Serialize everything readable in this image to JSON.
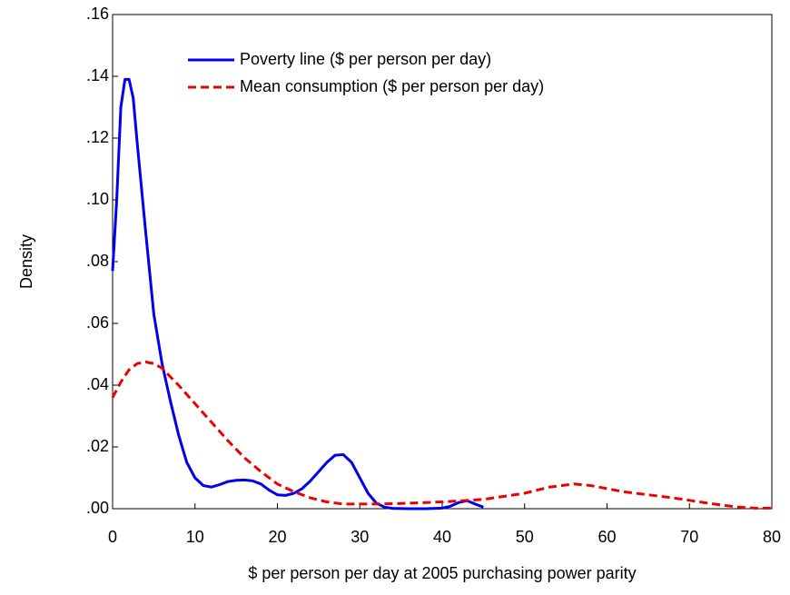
{
  "chart_data": {
    "type": "line",
    "x_label": "$ per person per day at 2005 purchasing power parity",
    "y_label": "Density",
    "xlim": [
      0,
      80
    ],
    "xticks": [
      0,
      10,
      20,
      30,
      40,
      50,
      60,
      70,
      80
    ],
    "ylim": [
      0,
      0.16
    ],
    "yticks": [
      {
        "value": 0,
        "label": ".00"
      },
      {
        "value": 0.02,
        "label": ".02"
      },
      {
        "value": 0.04,
        "label": ".04"
      },
      {
        "value": 0.06,
        "label": ".06"
      },
      {
        "value": 0.08,
        "label": ".08"
      },
      {
        "value": 0.1,
        "label": ".10"
      },
      {
        "value": 0.12,
        "label": ".12"
      },
      {
        "value": 0.14,
        "label": ".14"
      },
      {
        "value": 0.16,
        "label": ".16"
      }
    ],
    "series": [
      {
        "name": "Poverty line ($ per person per day)",
        "color": "#0000ee",
        "dash": false,
        "x": [
          0,
          0.5,
          1,
          1.5,
          2,
          2.5,
          3,
          4,
          5,
          6,
          7,
          8,
          9,
          10,
          11,
          12,
          13,
          14,
          15,
          16,
          17,
          18,
          19,
          20,
          21,
          22,
          23,
          24,
          25,
          26,
          27,
          28,
          29,
          30,
          31,
          32,
          33,
          34,
          36,
          38,
          40,
          41,
          42,
          43,
          44,
          45
        ],
        "values": [
          0.077,
          0.1,
          0.13,
          0.139,
          0.139,
          0.133,
          0.118,
          0.09,
          0.063,
          0.047,
          0.035,
          0.024,
          0.015,
          0.01,
          0.0075,
          0.007,
          0.0078,
          0.0088,
          0.0092,
          0.0093,
          0.009,
          0.008,
          0.006,
          0.0045,
          0.0043,
          0.005,
          0.0065,
          0.009,
          0.012,
          0.015,
          0.0173,
          0.0175,
          0.015,
          0.01,
          0.005,
          0.0018,
          0.0005,
          0.0001,
          0,
          0,
          0.0002,
          0.0008,
          0.002,
          0.0026,
          0.0015,
          0.0005
        ]
      },
      {
        "name": "Mean consumption ($ per person per day)",
        "color": "#ee0000",
        "dash": true,
        "x": [
          0,
          1,
          2,
          3,
          4,
          5,
          6,
          8,
          10,
          12,
          14,
          16,
          18,
          20,
          22,
          24,
          26,
          28,
          30,
          32,
          35,
          40,
          45,
          50,
          53,
          56,
          58,
          60,
          62,
          65,
          68,
          70,
          73,
          76,
          78,
          80
        ],
        "values": [
          0.036,
          0.041,
          0.045,
          0.047,
          0.0475,
          0.047,
          0.0455,
          0.04,
          0.034,
          0.028,
          0.022,
          0.0165,
          0.012,
          0.008,
          0.0055,
          0.0035,
          0.0022,
          0.0015,
          0.0015,
          0.0015,
          0.0017,
          0.0022,
          0.003,
          0.005,
          0.007,
          0.008,
          0.0075,
          0.0065,
          0.0055,
          0.0045,
          0.0035,
          0.0027,
          0.0015,
          0.0005,
          0.0002,
          0.0002
        ]
      }
    ]
  }
}
